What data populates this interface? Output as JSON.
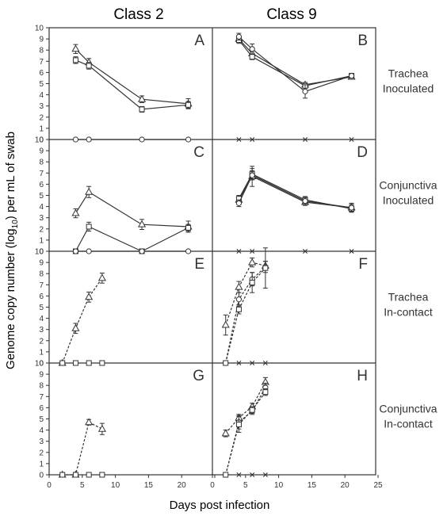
{
  "figure": {
    "column_titles": [
      "Class 2",
      "Class 9"
    ],
    "row_labels": [
      [
        "Trachea",
        "Inoculated"
      ],
      [
        "Conjunctiva",
        "Inoculated"
      ],
      [
        "Trachea",
        "In-contact"
      ],
      [
        "Conjunctiva",
        "In-contact"
      ]
    ],
    "ylabel_main": "Genome copy number (log",
    "ylabel_sub": "10",
    "ylabel_tail": ") per mL of swab",
    "xlabel": "Days post infection",
    "y_ticks": [
      0,
      1,
      2,
      3,
      4,
      5,
      6,
      7,
      8,
      9,
      10
    ],
    "x_ticks": [
      0,
      5,
      10,
      15,
      20,
      25
    ],
    "xlim": [
      0,
      25
    ],
    "ylim": [
      0,
      10
    ]
  },
  "chart_data": [
    {
      "type": "line",
      "panel": "A",
      "column": 0,
      "row": 0,
      "series": [
        {
          "marker": "triangle",
          "style": "solid",
          "x": [
            4,
            6,
            14,
            21
          ],
          "y": [
            8.1,
            6.9,
            3.6,
            3.2
          ],
          "err": [
            0.4,
            0.35,
            0.3,
            0.45
          ]
        },
        {
          "marker": "square",
          "style": "solid",
          "x": [
            4,
            6,
            14,
            21
          ],
          "y": [
            7.1,
            6.6,
            2.7,
            3.1
          ],
          "err": [
            0.3,
            0.3,
            0.25,
            0.3
          ]
        },
        {
          "marker": "circle",
          "style": "solid",
          "x": [
            4,
            6,
            14,
            21
          ],
          "y": [
            0,
            0,
            0,
            0
          ],
          "err": [
            0,
            0,
            0,
            0
          ]
        }
      ]
    },
    {
      "type": "line",
      "panel": "B",
      "column": 1,
      "row": 0,
      "series": [
        {
          "marker": "triangle",
          "style": "solid",
          "x": [
            4,
            6,
            14,
            21
          ],
          "y": [
            9.0,
            7.7,
            4.9,
            5.6
          ],
          "err": [
            0.3,
            0.3,
            0.2,
            0.2
          ]
        },
        {
          "marker": "square",
          "style": "solid",
          "x": [
            4,
            6,
            14,
            21
          ],
          "y": [
            8.9,
            7.4,
            4.8,
            5.7
          ],
          "err": [
            0.3,
            0.25,
            0.2,
            0.2
          ]
        },
        {
          "marker": "circle",
          "style": "solid",
          "x": [
            4,
            6,
            14,
            21
          ],
          "y": [
            9.2,
            8.1,
            4.3,
            5.7
          ],
          "err": [
            0.3,
            0.45,
            0.6,
            0.2
          ]
        },
        {
          "marker": "cross",
          "style": "none",
          "x": [
            4,
            6,
            14,
            21
          ],
          "y": [
            0,
            0,
            0,
            0
          ],
          "err": [
            0,
            0,
            0,
            0
          ]
        }
      ]
    },
    {
      "type": "line",
      "panel": "C",
      "column": 0,
      "row": 1,
      "series": [
        {
          "marker": "triangle",
          "style": "solid",
          "x": [
            4,
            6,
            14,
            21
          ],
          "y": [
            3.4,
            5.3,
            2.4,
            2.2
          ],
          "err": [
            0.4,
            0.5,
            0.45,
            0.5
          ]
        },
        {
          "marker": "square",
          "style": "solid",
          "x": [
            4,
            6,
            14,
            21
          ],
          "y": [
            0,
            2.2,
            0,
            2.1
          ],
          "err": [
            0,
            0.4,
            0,
            0.3
          ]
        },
        {
          "marker": "circle",
          "style": "solid",
          "x": [
            4,
            6,
            14,
            21
          ],
          "y": [
            0,
            0,
            0,
            0
          ],
          "err": [
            0,
            0,
            0,
            0
          ]
        }
      ]
    },
    {
      "type": "line",
      "panel": "D",
      "column": 1,
      "row": 1,
      "series": [
        {
          "marker": "triangle",
          "style": "solid",
          "x": [
            4,
            6,
            14,
            21
          ],
          "y": [
            4.6,
            6.7,
            4.4,
            3.9
          ],
          "err": [
            0.3,
            0.9,
            0.3,
            0.4
          ]
        },
        {
          "marker": "square",
          "style": "solid",
          "x": [
            4,
            6,
            14,
            21
          ],
          "y": [
            4.7,
            6.9,
            4.6,
            3.8
          ],
          "err": [
            0.3,
            0.5,
            0.3,
            0.3
          ]
        },
        {
          "marker": "circle",
          "style": "solid",
          "x": [
            4,
            6,
            14,
            21
          ],
          "y": [
            4.3,
            6.8,
            4.5,
            3.9
          ],
          "err": [
            0.3,
            0.4,
            0.3,
            0.3
          ]
        },
        {
          "marker": "cross",
          "style": "none",
          "x": [
            4,
            6,
            14,
            21
          ],
          "y": [
            0,
            0,
            0,
            0
          ],
          "err": [
            0,
            0,
            0,
            0
          ]
        }
      ]
    },
    {
      "type": "line",
      "panel": "E",
      "column": 0,
      "row": 2,
      "series": [
        {
          "marker": "triangle",
          "style": "dashed",
          "x": [
            2,
            4,
            6,
            8
          ],
          "y": [
            0,
            3.1,
            5.9,
            7.6
          ],
          "err": [
            0,
            0.45,
            0.45,
            0.45
          ]
        },
        {
          "marker": "square",
          "style": "none",
          "x": [
            2,
            4,
            6,
            8
          ],
          "y": [
            0,
            0,
            0,
            0
          ],
          "err": [
            0,
            0,
            0,
            0
          ]
        }
      ]
    },
    {
      "type": "line",
      "panel": "F",
      "column": 1,
      "row": 2,
      "series": [
        {
          "marker": "triangle",
          "style": "dashed",
          "x": [
            2,
            4,
            6,
            8
          ],
          "y": [
            3.4,
            6.8,
            9.0,
            8.7
          ],
          "err": [
            0.9,
            0.5,
            0.4,
            0.4
          ]
        },
        {
          "marker": "circle",
          "style": "dashed",
          "x": [
            2,
            4,
            6,
            8
          ],
          "y": [
            0,
            5.7,
            7.5,
            8.6
          ],
          "err": [
            0,
            0.6,
            0.6,
            0.5
          ]
        },
        {
          "marker": "square",
          "style": "dashed",
          "x": [
            2,
            4,
            6,
            8
          ],
          "y": [
            0,
            4.8,
            7.2,
            8.5
          ],
          "err": [
            0,
            0.4,
            0.9,
            1.8
          ]
        },
        {
          "marker": "cross",
          "style": "none",
          "x": [
            4,
            6,
            8
          ],
          "y": [
            0,
            0,
            0
          ],
          "err": [
            0,
            0,
            0
          ]
        }
      ]
    },
    {
      "type": "line",
      "panel": "G",
      "column": 0,
      "row": 3,
      "series": [
        {
          "marker": "triangle",
          "style": "dashed",
          "x": [
            2,
            4,
            6,
            8
          ],
          "y": [
            0,
            0,
            4.7,
            4.1
          ],
          "err": [
            0,
            0,
            0.25,
            0.5
          ]
        },
        {
          "marker": "square",
          "style": "none",
          "x": [
            2,
            4,
            6,
            8
          ],
          "y": [
            0,
            0,
            0,
            0
          ],
          "err": [
            0,
            0,
            0,
            0
          ]
        }
      ]
    },
    {
      "type": "line",
      "panel": "H",
      "column": 1,
      "row": 3,
      "series": [
        {
          "marker": "triangle",
          "style": "dashed",
          "x": [
            2,
            4,
            6,
            8
          ],
          "y": [
            3.7,
            5.1,
            6.1,
            8.3
          ],
          "err": [
            0.3,
            0.3,
            0.3,
            0.4
          ]
        },
        {
          "marker": "circle",
          "style": "dashed",
          "x": [
            2,
            4,
            6,
            8
          ],
          "y": [
            0,
            4.7,
            5.7,
            7.8
          ],
          "err": [
            0,
            0.6,
            0.3,
            0.4
          ]
        },
        {
          "marker": "square",
          "style": "dashed",
          "x": [
            2,
            4,
            6,
            8
          ],
          "y": [
            0,
            4.5,
            5.8,
            7.4
          ],
          "err": [
            0,
            0.7,
            0.3,
            0.3
          ]
        },
        {
          "marker": "cross",
          "style": "none",
          "x": [
            4,
            6,
            8
          ],
          "y": [
            0,
            0,
            0
          ],
          "err": [
            0,
            0,
            0
          ]
        }
      ]
    }
  ]
}
